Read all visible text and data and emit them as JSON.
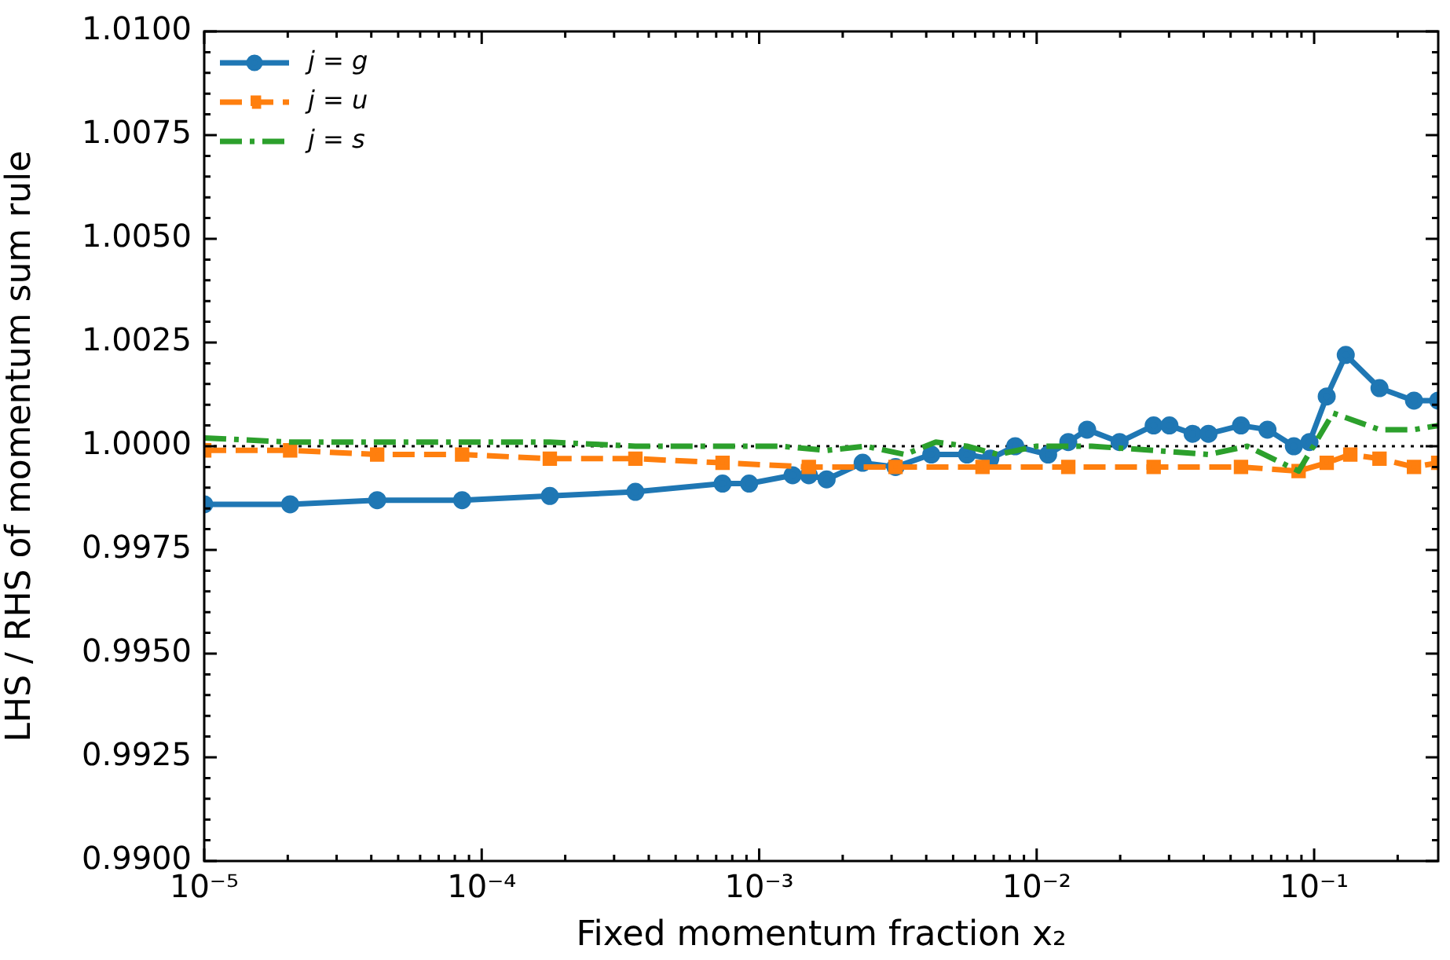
{
  "chart_data": {
    "type": "line",
    "xlabel": "Fixed momentum fraction x₂",
    "ylabel": "LHS / RHS of momentum sum rule",
    "log": "x",
    "grid": false,
    "legend": "top left",
    "xlim": [
      1e-05,
      0.28
    ],
    "ylim": [
      0.99,
      1.01
    ],
    "xticks": [
      {
        "value": 1e-05,
        "label": "10⁻⁵"
      },
      {
        "value": 2e-05,
        "label": null
      },
      {
        "value": 3e-05,
        "label": null
      },
      {
        "value": 4e-05,
        "label": null
      },
      {
        "value": 5e-05,
        "label": null
      },
      {
        "value": 6e-05,
        "label": null
      },
      {
        "value": 7e-05,
        "label": null
      },
      {
        "value": 8e-05,
        "label": null
      },
      {
        "value": 9e-05,
        "label": null
      },
      {
        "value": 0.0001,
        "label": "10⁻⁴"
      },
      {
        "value": 0.0002,
        "label": null
      },
      {
        "value": 0.0003,
        "label": null
      },
      {
        "value": 0.0004,
        "label": null
      },
      {
        "value": 0.0005,
        "label": null
      },
      {
        "value": 0.0006,
        "label": null
      },
      {
        "value": 0.0007,
        "label": null
      },
      {
        "value": 0.0008,
        "label": null
      },
      {
        "value": 0.0009,
        "label": null
      },
      {
        "value": 0.001,
        "label": "10⁻³"
      },
      {
        "value": 0.002,
        "label": null
      },
      {
        "value": 0.003,
        "label": null
      },
      {
        "value": 0.004,
        "label": null
      },
      {
        "value": 0.005,
        "label": null
      },
      {
        "value": 0.006,
        "label": null
      },
      {
        "value": 0.007,
        "label": null
      },
      {
        "value": 0.008,
        "label": null
      },
      {
        "value": 0.009,
        "label": null
      },
      {
        "value": 0.01,
        "label": "10⁻²"
      },
      {
        "value": 0.02,
        "label": null
      },
      {
        "value": 0.03,
        "label": null
      },
      {
        "value": 0.04,
        "label": null
      },
      {
        "value": 0.05,
        "label": null
      },
      {
        "value": 0.06,
        "label": null
      },
      {
        "value": 0.07,
        "label": null
      },
      {
        "value": 0.08,
        "label": null
      },
      {
        "value": 0.09,
        "label": null
      },
      {
        "value": 0.1,
        "label": "10⁻¹"
      },
      {
        "value": 0.2,
        "label": null
      }
    ],
    "yticks": [
      {
        "value": 0.99,
        "label": "0.9900"
      },
      {
        "value": 0.9905,
        "label": null
      },
      {
        "value": 0.991,
        "label": null
      },
      {
        "value": 0.9915,
        "label": null
      },
      {
        "value": 0.992,
        "label": null
      },
      {
        "value": 0.9925,
        "label": "0.9925"
      },
      {
        "value": 0.993,
        "label": null
      },
      {
        "value": 0.9935,
        "label": null
      },
      {
        "value": 0.994,
        "label": null
      },
      {
        "value": 0.9945,
        "label": null
      },
      {
        "value": 0.995,
        "label": "0.9950"
      },
      {
        "value": 0.9955,
        "label": null
      },
      {
        "value": 0.996,
        "label": null
      },
      {
        "value": 0.9965,
        "label": null
      },
      {
        "value": 0.997,
        "label": null
      },
      {
        "value": 0.9975,
        "label": "0.9975"
      },
      {
        "value": 0.998,
        "label": null
      },
      {
        "value": 0.9985,
        "label": null
      },
      {
        "value": 0.999,
        "label": null
      },
      {
        "value": 0.9995,
        "label": null
      },
      {
        "value": 1.0,
        "label": "1.0000"
      },
      {
        "value": 1.0005,
        "label": null
      },
      {
        "value": 1.001,
        "label": null
      },
      {
        "value": 1.0015,
        "label": null
      },
      {
        "value": 1.002,
        "label": null
      },
      {
        "value": 1.0025,
        "label": "1.0025"
      },
      {
        "value": 1.003,
        "label": null
      },
      {
        "value": 1.0035,
        "label": null
      },
      {
        "value": 1.004,
        "label": null
      },
      {
        "value": 1.0045,
        "label": null
      },
      {
        "value": 1.005,
        "label": "1.0050"
      },
      {
        "value": 1.0055,
        "label": null
      },
      {
        "value": 1.006,
        "label": null
      },
      {
        "value": 1.0065,
        "label": null
      },
      {
        "value": 1.007,
        "label": null
      },
      {
        "value": 1.0075,
        "label": "1.0075"
      },
      {
        "value": 1.008,
        "label": null
      },
      {
        "value": 1.0085,
        "label": null
      },
      {
        "value": 1.009,
        "label": null
      },
      {
        "value": 1.0095,
        "label": null
      },
      {
        "value": 1.01,
        "label": "1.0100"
      }
    ],
    "ref_lines": [
      {
        "axis": "y",
        "value": 1.0,
        "color": "#000000",
        "line_style": "dotted"
      }
    ],
    "series": [
      {
        "name": "j = g",
        "color": "#1f77b4",
        "marker": "circle",
        "line_style": "solid",
        "x": [
          1e-05,
          2.04e-05,
          4.2e-05,
          8.5e-05,
          0.000176,
          0.000358,
          0.000738,
          0.00092,
          0.00132,
          0.00151,
          0.00175,
          0.00236,
          0.0031,
          0.00417,
          0.00561,
          0.00681,
          0.00837,
          0.011,
          0.013,
          0.0152,
          0.0199,
          0.0264,
          0.0301,
          0.0365,
          0.0416,
          0.0545,
          0.0679,
          0.0845,
          0.0962,
          0.111,
          0.13,
          0.172,
          0.229,
          0.28
        ],
        "values": [
          0.9986,
          0.9986,
          0.9987,
          0.9987,
          0.9988,
          0.9989,
          0.9991,
          0.9991,
          0.9993,
          0.9993,
          0.9992,
          0.9996,
          0.9995,
          0.9998,
          0.9998,
          0.9997,
          1.0,
          0.9998,
          1.0001,
          1.0004,
          1.0001,
          1.0005,
          1.0005,
          1.0003,
          1.0003,
          1.0005,
          1.0004,
          1.0,
          1.0001,
          1.0012,
          1.0022,
          1.0014,
          1.0011,
          1.0011
        ]
      },
      {
        "name": "j = u",
        "color": "#ff7f0e",
        "marker": "square",
        "line_style": "dashed",
        "x": [
          1e-05,
          2.04e-05,
          4.2e-05,
          8.5e-05,
          0.000176,
          0.000358,
          0.000738,
          0.00151,
          0.0031,
          0.00638,
          0.013,
          0.0264,
          0.0545,
          0.0879,
          0.111,
          0.135,
          0.172,
          0.229,
          0.28
        ],
        "values": [
          0.9999,
          0.9999,
          0.9998,
          0.9998,
          0.9997,
          0.9997,
          0.9996,
          0.9995,
          0.9995,
          0.9995,
          0.9995,
          0.9995,
          0.9995,
          0.9994,
          0.9996,
          0.9998,
          0.9997,
          0.9995,
          0.9996
        ]
      },
      {
        "name": "j = s",
        "color": "#2ca02c",
        "marker": "none",
        "line_style": "dashdot",
        "x": [
          1e-05,
          2.04e-05,
          4.2e-05,
          8.5e-05,
          0.000176,
          0.000358,
          0.000738,
          0.00119,
          0.00175,
          0.00242,
          0.00335,
          0.00433,
          0.00561,
          0.00726,
          0.01,
          0.0158,
          0.0264,
          0.0416,
          0.0574,
          0.0879,
          0.117,
          0.172,
          0.229,
          0.28
        ],
        "values": [
          1.0002,
          1.0001,
          1.0001,
          1.0001,
          1.0001,
          1.0,
          1.0,
          1.0,
          0.9999,
          1.0,
          0.9998,
          1.0001,
          1.0,
          0.9998,
          1.0,
          1.0,
          0.9999,
          0.9998,
          1.0,
          0.9994,
          1.0008,
          1.0004,
          1.0004,
          1.0005
        ]
      }
    ]
  }
}
